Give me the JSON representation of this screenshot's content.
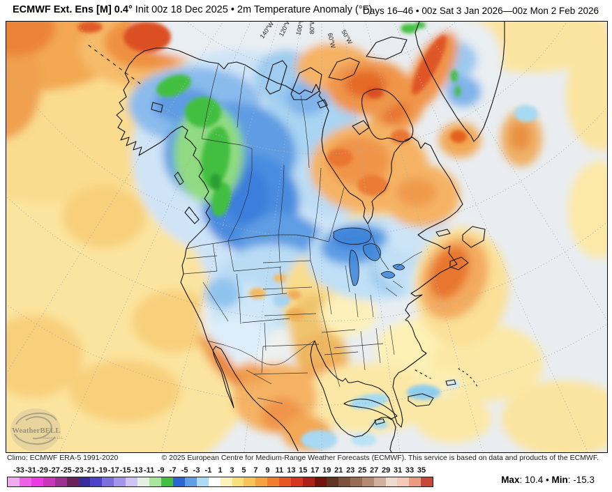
{
  "header": {
    "product_bold": "ECMWF Ext. Ens [M] 0.4°",
    "product_rest": " Init 00z 18 Dec 2025 • 2m Temperature Anomaly (°F)",
    "valid_range": "Days 16–46 • 00z Sat 3 Jan 2026—00z Mon 2 Feb 2026"
  },
  "map": {
    "meridian_labels": [
      "140°W",
      "120°W",
      "100°W",
      "80°W",
      "60°W",
      "50°W"
    ],
    "watermark": {
      "brand": "WeatherBELL",
      "sub": "Analytics LLC"
    }
  },
  "footer": {
    "climo": "Climo: ECMWF ERA-5 1991-2020",
    "copyright": "© 2025 European Centre for Medium-Range Weather Forecasts (ECMWF). This service is based on data and products of the ECMWF."
  },
  "legend": {
    "ticks": [
      -33,
      -31,
      -29,
      -27,
      -25,
      -23,
      -21,
      -19,
      -17,
      -15,
      -13,
      -11,
      -9,
      -7,
      -5,
      -3,
      -1,
      1,
      3,
      5,
      7,
      9,
      11,
      13,
      15,
      17,
      19,
      21,
      23,
      25,
      27,
      29,
      31,
      33,
      35
    ],
    "colors": [
      "#f2aaee",
      "#ee60e6",
      "#e93ce2",
      "#c837ba",
      "#9c3192",
      "#6b2258",
      "#3a2b9a",
      "#4a44c8",
      "#7c6edb",
      "#a495ea",
      "#cdc3f4",
      "#e4f0e2",
      "#a9e59b",
      "#43bf41",
      "#2a67d0",
      "#5f9de4",
      "#abdcf4",
      "#ffffff",
      "#fdf2b8",
      "#fcdf7d",
      "#f9c25a",
      "#f6a142",
      "#f07e2e",
      "#e65723",
      "#d4371d",
      "#ab2216",
      "#73130d",
      "#5f3425",
      "#7b5140",
      "#976b55",
      "#b28a72",
      "#d0b09c",
      "#ecdacd",
      "#f5c9b8",
      "#eb9b82",
      "#c54938"
    ],
    "stats": {
      "max_label": "Max",
      "max_value": ": 10.4",
      "separator": " • ",
      "min_label": "Min",
      "min_value": ": -15.3"
    }
  },
  "chart_data": {
    "type": "heatmap",
    "title": "2m Temperature Anomaly (°F)",
    "region": "North America",
    "scale_tick_min": -33,
    "scale_tick_max": 35,
    "scale_step": 2,
    "max": 10.4,
    "min": -15.3,
    "units": "°F"
  }
}
